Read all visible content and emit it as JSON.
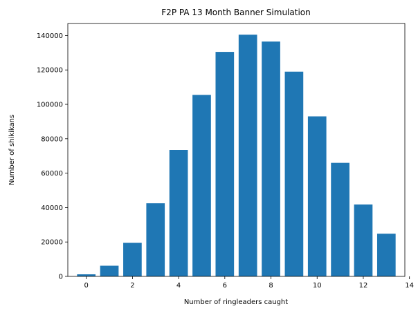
{
  "chart_data": {
    "type": "bar",
    "title": "F2P PA 13 Month Banner Simulation",
    "xlabel": "Number of ringleaders caught",
    "ylabel": "Number of shikikans",
    "x": [
      0,
      1,
      2,
      3,
      4,
      5,
      6,
      7,
      8,
      9,
      10,
      11,
      12,
      13
    ],
    "values": [
      1200,
      6200,
      19500,
      42500,
      73500,
      105500,
      130500,
      140500,
      136500,
      119000,
      93000,
      66000,
      41800,
      24800
    ],
    "xlim": [
      -0.8,
      13.8
    ],
    "ylim": [
      0,
      147000
    ],
    "xticks": [
      0,
      2,
      4,
      6,
      8,
      10,
      12,
      14
    ],
    "yticks": [
      0,
      20000,
      40000,
      60000,
      80000,
      100000,
      120000,
      140000
    ],
    "bar_color": "#1f77b4",
    "grid": false
  }
}
